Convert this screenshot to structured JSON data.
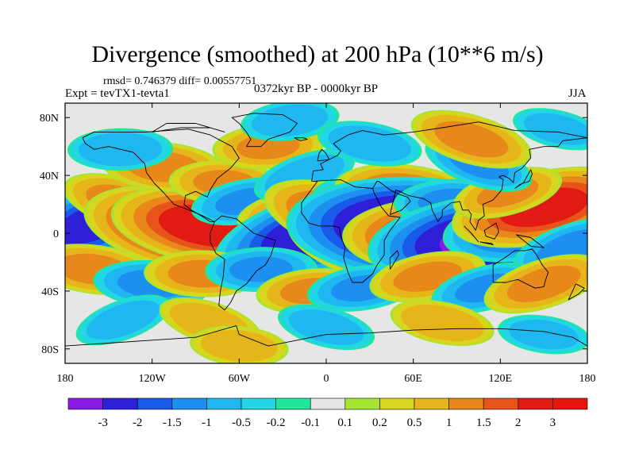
{
  "chart_data": {
    "type": "heatmap",
    "title": "Divergence (smoothed) at 200 hPa (10**6 m/s)",
    "stats_label": "rmsd= 0.746379 diff= 0.00557751",
    "experiment_label": "Expt = tevTX1-tevta1",
    "period_label": "0372kyr BP - 0000kyr BP",
    "season_label": "JJA",
    "projection": "cylindrical equidistant, global",
    "x_ticks": [
      {
        "value": -180,
        "label": "180"
      },
      {
        "value": -120,
        "label": "120W"
      },
      {
        "value": -60,
        "label": "60W"
      },
      {
        "value": 0,
        "label": "0"
      },
      {
        "value": 60,
        "label": "60E"
      },
      {
        "value": 120,
        "label": "120E"
      },
      {
        "value": 180,
        "label": "180"
      }
    ],
    "y_ticks": [
      {
        "value": 80,
        "label": "80N"
      },
      {
        "value": 40,
        "label": "40N"
      },
      {
        "value": 0,
        "label": "0"
      },
      {
        "value": -40,
        "label": "40S"
      },
      {
        "value": -80,
        "label": "80S"
      }
    ],
    "xlim": [
      -180,
      180
    ],
    "ylim": [
      -90,
      90
    ],
    "colorbar": {
      "levels": [
        "-3",
        "-2",
        "-1.5",
        "-1",
        "-0.5",
        "-0.2",
        "-0.1",
        "0.1",
        "0.2",
        "0.5",
        "1",
        "1.5",
        "2",
        "3"
      ],
      "colors": [
        "#8a1be6",
        "#2f1fd8",
        "#1a5ae8",
        "#1c8ff0",
        "#1fb7f0",
        "#22d6e6",
        "#20e89a",
        "#e6e6e6",
        "#a6e632",
        "#d6d61f",
        "#e6b51a",
        "#e8871a",
        "#e8531a",
        "#e11a14",
        "#e8150f"
      ]
    },
    "anomalies": [
      {
        "lon": -158,
        "lat": 8,
        "value": -2.2
      },
      {
        "lon": -138,
        "lat": 20,
        "value": 1.3
      },
      {
        "lon": -120,
        "lat": 12,
        "value": -1.1
      },
      {
        "lon": -95,
        "lat": 2,
        "value": 2.6
      },
      {
        "lon": -80,
        "lat": 5,
        "value": 2.4
      },
      {
        "lon": -112,
        "lat": 46,
        "value": 1.2
      },
      {
        "lon": -70,
        "lat": 35,
        "value": 1.0
      },
      {
        "lon": -142,
        "lat": 58,
        "value": -0.9
      },
      {
        "lon": -40,
        "lat": 60,
        "value": 1.0
      },
      {
        "lon": -25,
        "lat": 78,
        "value": -0.8
      },
      {
        "lon": -55,
        "lat": 22,
        "value": -1.0
      },
      {
        "lon": -30,
        "lat": 15,
        "value": 0.7
      },
      {
        "lon": -8,
        "lat": 0,
        "value": -2.5
      },
      {
        "lon": -15,
        "lat": 40,
        "value": -0.9
      },
      {
        "lon": 15,
        "lat": 8,
        "value": 2.0
      },
      {
        "lon": 30,
        "lat": -5,
        "value": 1.0
      },
      {
        "lon": 45,
        "lat": -8,
        "value": 2.6
      },
      {
        "lon": 35,
        "lat": 20,
        "value": -1.3
      },
      {
        "lon": 55,
        "lat": 28,
        "value": 1.5
      },
      {
        "lon": 65,
        "lat": 3,
        "value": -3.5
      },
      {
        "lon": 80,
        "lat": -2,
        "value": 2.4
      },
      {
        "lon": 85,
        "lat": 22,
        "value": -1.0
      },
      {
        "lon": 110,
        "lat": -5,
        "value": -3.0
      },
      {
        "lon": 140,
        "lat": 5,
        "value": -2.0
      },
      {
        "lon": 150,
        "lat": 18,
        "value": 2.2
      },
      {
        "lon": 125,
        "lat": 28,
        "value": 1.0
      },
      {
        "lon": 170,
        "lat": -10,
        "value": -1.2
      },
      {
        "lon": 105,
        "lat": 48,
        "value": -1.0
      },
      {
        "lon": 100,
        "lat": 65,
        "value": 1.2
      },
      {
        "lon": 160,
        "lat": 72,
        "value": -0.7
      },
      {
        "lon": 30,
        "lat": 62,
        "value": -0.9
      },
      {
        "lon": -160,
        "lat": -25,
        "value": 1.2
      },
      {
        "lon": -120,
        "lat": -35,
        "value": -1.1
      },
      {
        "lon": -85,
        "lat": -28,
        "value": 1.1
      },
      {
        "lon": -45,
        "lat": -25,
        "value": -1.0
      },
      {
        "lon": -10,
        "lat": -40,
        "value": 1.0
      },
      {
        "lon": 25,
        "lat": -38,
        "value": -1.0
      },
      {
        "lon": 70,
        "lat": -30,
        "value": 1.1
      },
      {
        "lon": 110,
        "lat": -38,
        "value": -1.0
      },
      {
        "lon": 150,
        "lat": -35,
        "value": 1.2
      },
      {
        "lon": -140,
        "lat": -60,
        "value": -0.8
      },
      {
        "lon": -80,
        "lat": -62,
        "value": 0.9
      },
      {
        "lon": 0,
        "lat": -65,
        "value": -0.8
      },
      {
        "lon": 80,
        "lat": -62,
        "value": 0.9
      },
      {
        "lon": 150,
        "lat": -70,
        "value": -0.7
      },
      {
        "lon": -60,
        "lat": -78,
        "value": 0.8
      }
    ]
  }
}
